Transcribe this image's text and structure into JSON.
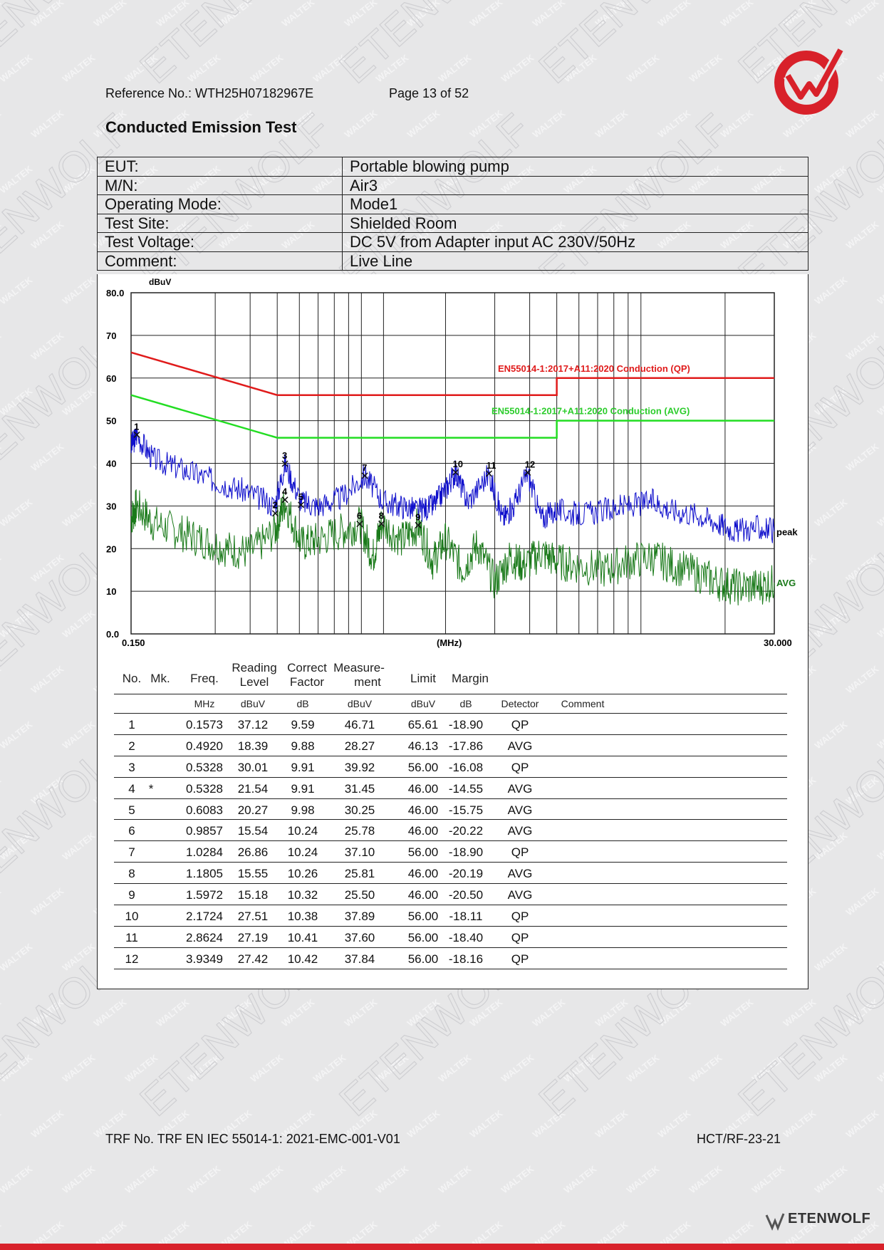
{
  "header": {
    "reference": "Reference No.: WTH25H07182967E",
    "page": "Page 13 of 52"
  },
  "section_title": "Conducted Emission Test",
  "info_table": [
    {
      "label": "EUT:",
      "value": "Portable blowing pump"
    },
    {
      "label": "M/N:",
      "value": "Air3"
    },
    {
      "label": "Operating Mode:",
      "value": "Mode1"
    },
    {
      "label": "Test Site:",
      "value": "Shielded Room"
    },
    {
      "label": "Test Voltage:",
      "value": "DC 5V from Adapter input AC 230V/50Hz"
    },
    {
      "label": "Comment:",
      "value": "Live Line"
    }
  ],
  "chart_data": {
    "type": "line",
    "x_scale": "log",
    "xlim": [
      0.15,
      30.0
    ],
    "ylim": [
      0,
      80
    ],
    "ylabel": "dBuV",
    "xlabel": "(MHz)",
    "x_tick_labels": [
      "0.150",
      "30.000"
    ],
    "y_tick_labels": [
      "0.0",
      "10",
      "20",
      "30",
      "40",
      "50",
      "60",
      "70",
      "80.0"
    ],
    "y_ticks": [
      0,
      10,
      20,
      30,
      40,
      50,
      60,
      70,
      80
    ],
    "grid": true,
    "series": [
      {
        "name": "EN55014-1:2017+A11:2020 Conduction (QP)",
        "color": "#e01b1b",
        "x": [
          0.15,
          0.5,
          0.5,
          5.0,
          5.0,
          30.0
        ],
        "y": [
          66,
          56,
          56,
          56,
          60,
          60
        ]
      },
      {
        "name": "EN55014-1:2017+A11:2020 Conduction (AVG)",
        "color": "#22dd22",
        "x": [
          0.15,
          0.5,
          0.5,
          5.0,
          5.0,
          30.0
        ],
        "y": [
          56,
          46,
          46,
          46,
          50,
          50
        ]
      },
      {
        "name": "peak",
        "color": "#1010cc",
        "x": [
          0.15,
          0.157,
          0.18,
          0.22,
          0.27,
          0.33,
          0.4,
          0.49,
          0.533,
          0.61,
          0.7,
          0.85,
          1.03,
          1.2,
          1.4,
          1.6,
          1.8,
          2.0,
          2.17,
          2.4,
          2.86,
          3.2,
          3.5,
          3.93,
          4.4,
          5.0,
          6.0,
          7.5,
          9.0,
          11.0,
          13.0,
          16.0,
          19.0,
          22.0,
          26.0,
          30.0
        ],
        "y": [
          44,
          46.7,
          41,
          39,
          37,
          35,
          33,
          30,
          39.9,
          31,
          30,
          32,
          37.1,
          31,
          30,
          29,
          30,
          34,
          37.9,
          31,
          37.6,
          27,
          30,
          37.8,
          27,
          29,
          28,
          29,
          30,
          31,
          29,
          28,
          26,
          24,
          25,
          24
        ]
      },
      {
        "name": "AVG",
        "color": "#1a7a1a",
        "x": [
          0.15,
          0.157,
          0.18,
          0.22,
          0.27,
          0.33,
          0.4,
          0.49,
          0.533,
          0.61,
          0.7,
          0.85,
          0.99,
          1.1,
          1.18,
          1.4,
          1.6,
          1.8,
          2.0,
          2.3,
          2.6,
          3.0,
          3.4,
          3.8,
          4.4,
          5.0,
          6.0,
          7.5,
          9.0,
          11.0,
          13.0,
          16.0,
          19.0,
          22.0,
          26.0,
          30.0
        ],
        "y": [
          27,
          30,
          26,
          24,
          22,
          20,
          19,
          24,
          31,
          21,
          22,
          24,
          25.8,
          18,
          25.8,
          22,
          25.5,
          17,
          22,
          15,
          21,
          12,
          18,
          16,
          19,
          17,
          16,
          15,
          17,
          18,
          16,
          14,
          12,
          11,
          11,
          12
        ]
      }
    ],
    "markers": [
      {
        "no": "1",
        "freq": 0.1573,
        "level": 46.71
      },
      {
        "no": "2",
        "freq": 0.492,
        "level": 28.27
      },
      {
        "no": "3",
        "freq": 0.5328,
        "level": 39.92
      },
      {
        "no": "4",
        "freq": 0.5328,
        "level": 31.45
      },
      {
        "no": "5",
        "freq": 0.6083,
        "level": 30.25
      },
      {
        "no": "6",
        "freq": 0.9857,
        "level": 25.78
      },
      {
        "no": "7",
        "freq": 1.0284,
        "level": 37.1
      },
      {
        "no": "8",
        "freq": 1.1805,
        "level": 25.81
      },
      {
        "no": "9",
        "freq": 1.5972,
        "level": 25.5
      },
      {
        "no": "10",
        "freq": 2.1724,
        "level": 37.89
      },
      {
        "no": "11",
        "freq": 2.8624,
        "level": 37.6
      },
      {
        "no": "12",
        "freq": 3.9349,
        "level": 37.84
      }
    ],
    "vertical_lines_mhz": [
      0.3,
      0.4,
      0.5,
      0.6,
      0.7,
      0.8,
      0.9,
      1.0,
      1.2,
      2.0,
      3.0,
      4.0,
      5.0,
      6.0,
      7.0,
      8.0,
      9.0,
      10.0,
      20.0
    ]
  },
  "results_table": {
    "headers": {
      "no": "No.",
      "mk": "Mk.",
      "freq": "Freq.",
      "reading_1": "Reading",
      "reading_2": "Level",
      "correct_1": "Correct",
      "correct_2": "Factor",
      "measure_1": "Measure-",
      "measure_2": "ment",
      "limit": "Limit",
      "margin": "Margin"
    },
    "units": {
      "freq": "MHz",
      "reading": "dBuV",
      "correct": "dB",
      "measure": "dBuV",
      "limit": "dBuV",
      "margin": "dB",
      "detector": "Detector",
      "comment": "Comment"
    },
    "rows": [
      {
        "no": "1",
        "mk": "",
        "freq": "0.1573",
        "reading": "37.12",
        "factor": "9.59",
        "measure": "46.71",
        "limit": "65.61",
        "margin": "-18.90",
        "detector": "QP"
      },
      {
        "no": "2",
        "mk": "",
        "freq": "0.4920",
        "reading": "18.39",
        "factor": "9.88",
        "measure": "28.27",
        "limit": "46.13",
        "margin": "-17.86",
        "detector": "AVG"
      },
      {
        "no": "3",
        "mk": "",
        "freq": "0.5328",
        "reading": "30.01",
        "factor": "9.91",
        "measure": "39.92",
        "limit": "56.00",
        "margin": "-16.08",
        "detector": "QP"
      },
      {
        "no": "4",
        "mk": "*",
        "freq": "0.5328",
        "reading": "21.54",
        "factor": "9.91",
        "measure": "31.45",
        "limit": "46.00",
        "margin": "-14.55",
        "detector": "AVG"
      },
      {
        "no": "5",
        "mk": "",
        "freq": "0.6083",
        "reading": "20.27",
        "factor": "9.98",
        "measure": "30.25",
        "limit": "46.00",
        "margin": "-15.75",
        "detector": "AVG"
      },
      {
        "no": "6",
        "mk": "",
        "freq": "0.9857",
        "reading": "15.54",
        "factor": "10.24",
        "measure": "25.78",
        "limit": "46.00",
        "margin": "-20.22",
        "detector": "AVG"
      },
      {
        "no": "7",
        "mk": "",
        "freq": "1.0284",
        "reading": "26.86",
        "factor": "10.24",
        "measure": "37.10",
        "limit": "56.00",
        "margin": "-18.90",
        "detector": "QP"
      },
      {
        "no": "8",
        "mk": "",
        "freq": "1.1805",
        "reading": "15.55",
        "factor": "10.26",
        "measure": "25.81",
        "limit": "46.00",
        "margin": "-20.19",
        "detector": "AVG"
      },
      {
        "no": "9",
        "mk": "",
        "freq": "1.5972",
        "reading": "15.18",
        "factor": "10.32",
        "measure": "25.50",
        "limit": "46.00",
        "margin": "-20.50",
        "detector": "AVG"
      },
      {
        "no": "10",
        "mk": "",
        "freq": "2.1724",
        "reading": "27.51",
        "factor": "10.38",
        "measure": "37.89",
        "limit": "56.00",
        "margin": "-18.11",
        "detector": "QP"
      },
      {
        "no": "11",
        "mk": "",
        "freq": "2.8624",
        "reading": "27.19",
        "factor": "10.41",
        "measure": "37.60",
        "limit": "56.00",
        "margin": "-18.40",
        "detector": "QP"
      },
      {
        "no": "12",
        "mk": "",
        "freq": "3.9349",
        "reading": "27.42",
        "factor": "10.42",
        "measure": "37.84",
        "limit": "56.00",
        "margin": "-18.16",
        "detector": "QP"
      }
    ]
  },
  "footer": {
    "trf": "TRF No. TRF EN IEC 55014-1: 2021-EMC-001-V01",
    "hct": "HCT/RF-23-21",
    "brand": "ETENWOLF"
  },
  "watermark": {
    "small": "WALTEK",
    "large": "ETENWOLF"
  },
  "colors": {
    "accent_red": "#d8212a",
    "qp_limit": "#e01b1b",
    "avg_limit": "#22dd22",
    "peak": "#1010cc",
    "avg": "#1a7a1a"
  }
}
